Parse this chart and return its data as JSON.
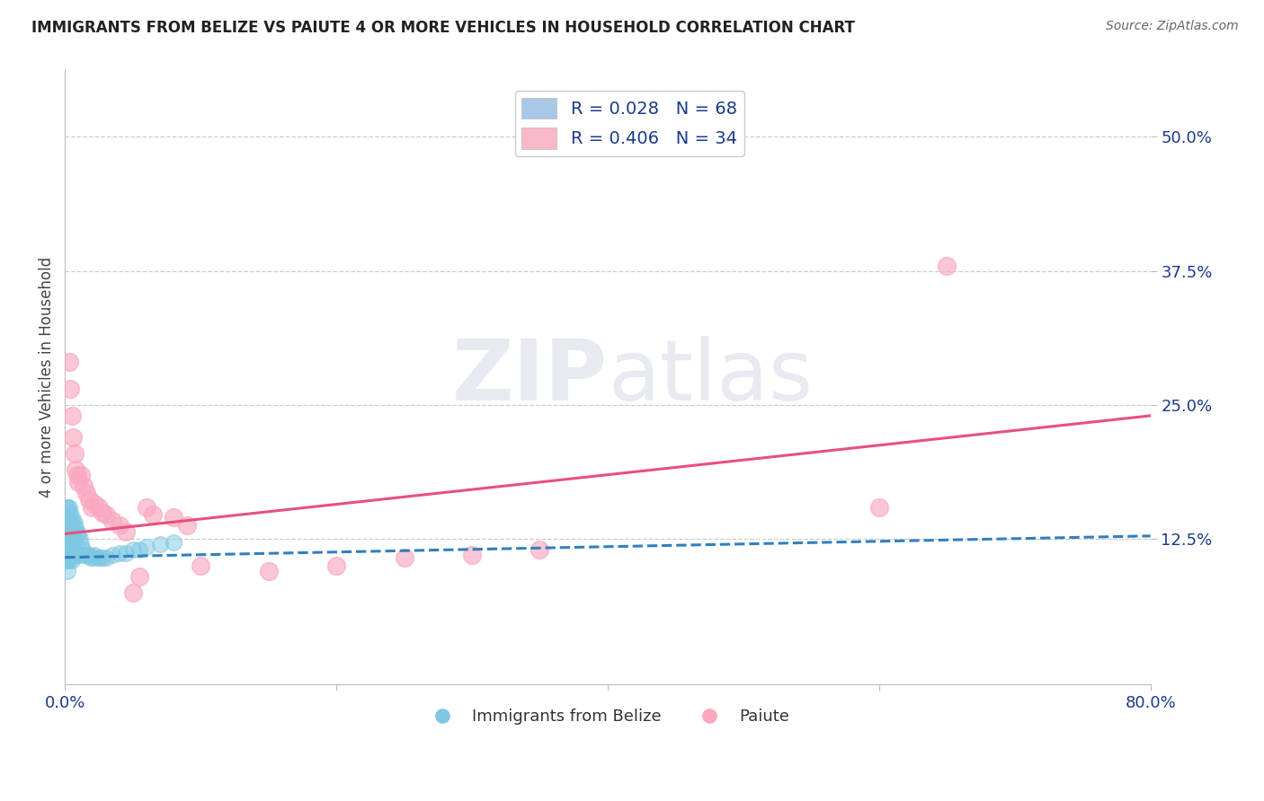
{
  "title": "IMMIGRANTS FROM BELIZE VS PAIUTE 4 OR MORE VEHICLES IN HOUSEHOLD CORRELATION CHART",
  "source": "Source: ZipAtlas.com",
  "ylabel": "4 or more Vehicles in Household",
  "xlim": [
    0.0,
    0.8
  ],
  "ylim": [
    -0.01,
    0.5625
  ],
  "xticks": [
    0.0,
    0.2,
    0.4,
    0.6,
    0.8
  ],
  "xticklabels": [
    "0.0%",
    "",
    "",
    "",
    "80.0%"
  ],
  "ytick_vals": [
    0.125,
    0.25,
    0.375,
    0.5
  ],
  "ytick_labels": [
    "12.5%",
    "25.0%",
    "37.5%",
    "50.0%"
  ],
  "legend1_label": "R = 0.028   N = 68",
  "legend2_label": "R = 0.406   N = 34",
  "legend1_color": "#a8c8e8",
  "legend2_color": "#f8b8c8",
  "blue_scatter_x": [
    0.001,
    0.001,
    0.001,
    0.001,
    0.001,
    0.001,
    0.001,
    0.001,
    0.001,
    0.001,
    0.002,
    0.002,
    0.002,
    0.002,
    0.002,
    0.002,
    0.002,
    0.002,
    0.003,
    0.003,
    0.003,
    0.003,
    0.003,
    0.003,
    0.004,
    0.004,
    0.004,
    0.004,
    0.004,
    0.005,
    0.005,
    0.005,
    0.005,
    0.006,
    0.006,
    0.006,
    0.007,
    0.007,
    0.007,
    0.008,
    0.008,
    0.009,
    0.009,
    0.01,
    0.01,
    0.011,
    0.012,
    0.013,
    0.014,
    0.015,
    0.016,
    0.017,
    0.018,
    0.019,
    0.02,
    0.022,
    0.024,
    0.026,
    0.028,
    0.03,
    0.035,
    0.04,
    0.045,
    0.05,
    0.055,
    0.06,
    0.07,
    0.08
  ],
  "blue_scatter_y": [
    0.155,
    0.145,
    0.14,
    0.135,
    0.13,
    0.125,
    0.12,
    0.115,
    0.11,
    0.105,
    0.155,
    0.145,
    0.135,
    0.125,
    0.115,
    0.11,
    0.105,
    0.095,
    0.155,
    0.145,
    0.135,
    0.125,
    0.115,
    0.105,
    0.15,
    0.14,
    0.13,
    0.12,
    0.11,
    0.145,
    0.135,
    0.12,
    0.105,
    0.14,
    0.125,
    0.11,
    0.14,
    0.125,
    0.11,
    0.135,
    0.11,
    0.13,
    0.11,
    0.13,
    0.11,
    0.125,
    0.12,
    0.115,
    0.11,
    0.11,
    0.11,
    0.11,
    0.11,
    0.108,
    0.108,
    0.11,
    0.108,
    0.108,
    0.108,
    0.108,
    0.11,
    0.112,
    0.112,
    0.115,
    0.115,
    0.118,
    0.12,
    0.122
  ],
  "pink_scatter_x": [
    0.003,
    0.004,
    0.005,
    0.006,
    0.007,
    0.008,
    0.009,
    0.01,
    0.012,
    0.014,
    0.016,
    0.018,
    0.02,
    0.022,
    0.025,
    0.028,
    0.03,
    0.035,
    0.04,
    0.045,
    0.05,
    0.055,
    0.06,
    0.065,
    0.08,
    0.09,
    0.1,
    0.15,
    0.2,
    0.25,
    0.3,
    0.35,
    0.6,
    0.65
  ],
  "pink_scatter_y": [
    0.29,
    0.265,
    0.24,
    0.22,
    0.205,
    0.19,
    0.185,
    0.178,
    0.185,
    0.175,
    0.168,
    0.162,
    0.155,
    0.158,
    0.155,
    0.15,
    0.148,
    0.142,
    0.138,
    0.132,
    0.075,
    0.09,
    0.155,
    0.148,
    0.145,
    0.138,
    0.1,
    0.095,
    0.1,
    0.108,
    0.11,
    0.115,
    0.155,
    0.38
  ],
  "blue_trend_x": [
    0.0,
    0.8
  ],
  "blue_trend_y": [
    0.108,
    0.128
  ],
  "pink_trend_x": [
    0.0,
    0.8
  ],
  "pink_trend_y": [
    0.13,
    0.24
  ],
  "title_color": "#222222",
  "blue_color": "#7ec8e3",
  "pink_color": "#f9a8c0",
  "blue_line_color": "#3080c0",
  "pink_line_color": "#e8507a",
  "axis_label_color": "#1a3a8a",
  "grid_color": "#cccccc",
  "background_color": "#ffffff",
  "title_fontsize": 12,
  "tick_fontsize": 13,
  "label_fontsize": 12
}
